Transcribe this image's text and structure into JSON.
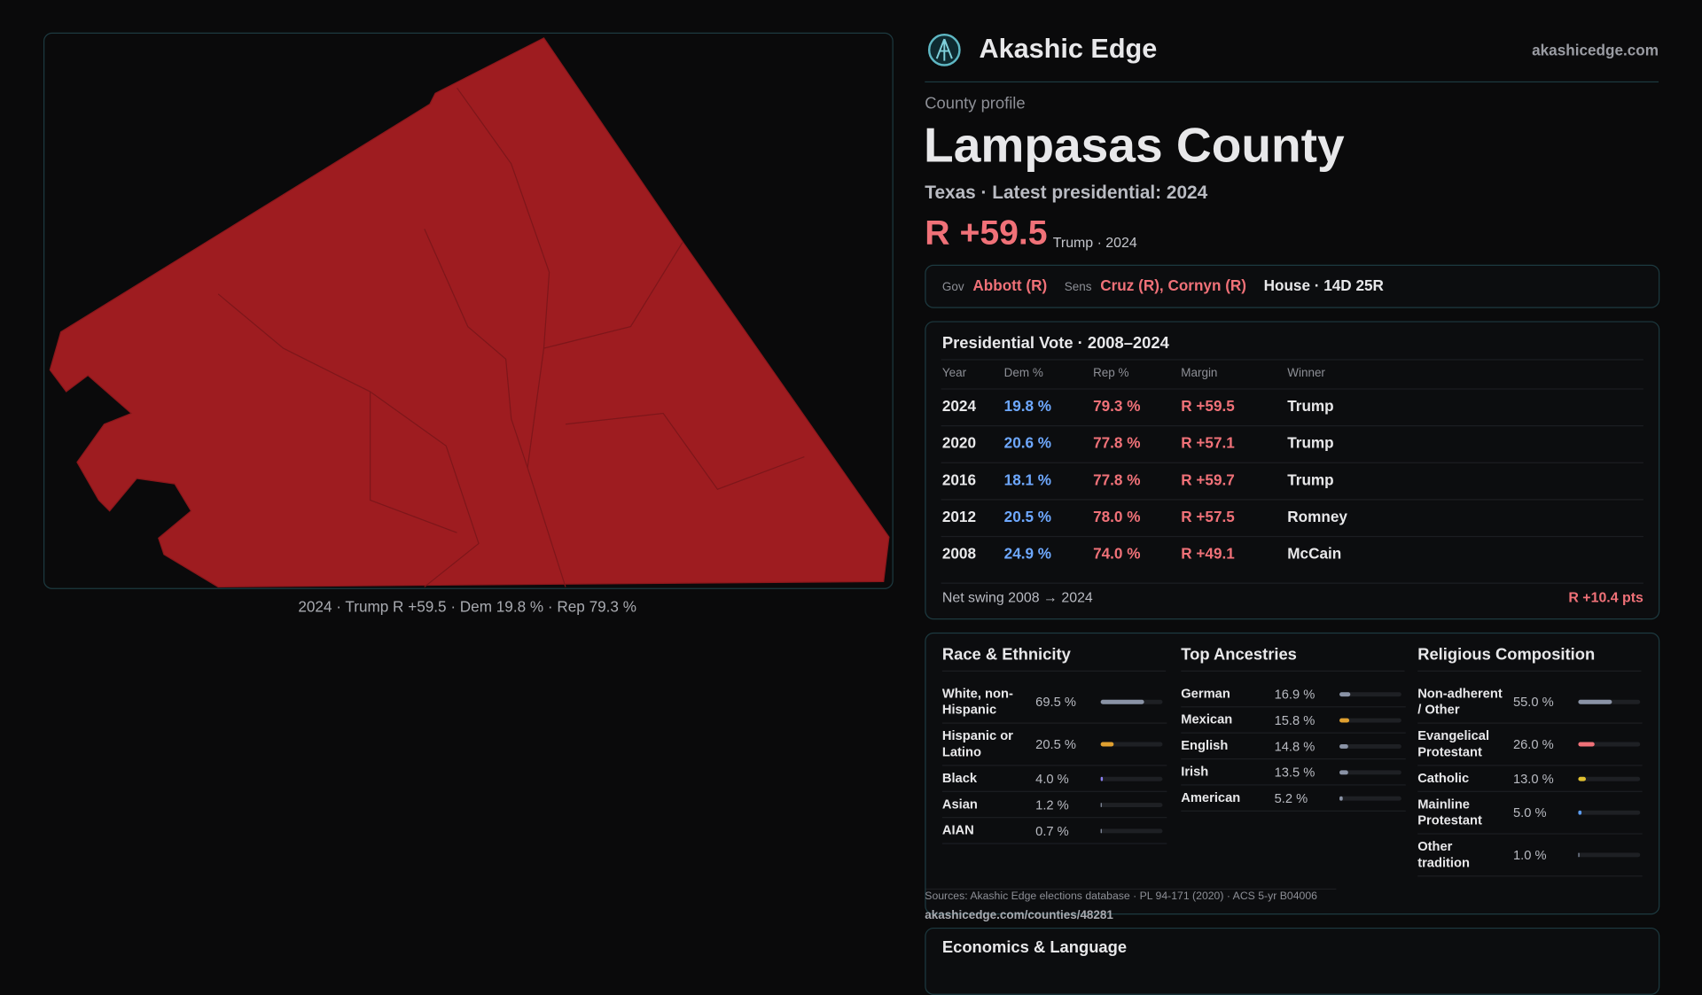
{
  "header": {
    "brand": "Akashic Edge",
    "site": "akashicedge.com"
  },
  "profile": {
    "kicker": "County profile",
    "name": "Lampasas County",
    "subtitle": "Texas · Latest presidential: 2024",
    "margin": "R +59.5",
    "margin_note": "Trump · 2024"
  },
  "officials": {
    "items": [
      {
        "role": "Gov",
        "names": "Abbott (R)"
      },
      {
        "role": "Sens",
        "names": "Cruz (R), Cornyn (R)"
      }
    ],
    "house": "House · 14D 25R"
  },
  "map": {
    "caption": "2024 · Trump R +59.5 · Dem 19.8 % · Rep 79.3 %"
  },
  "presidential": {
    "title": "Presidential Vote · 2008–2024",
    "columns": [
      "Year",
      "Dem %",
      "Rep %",
      "Margin",
      "Winner"
    ],
    "rows": [
      [
        "2024",
        "19.8 %",
        "79.3 %",
        "R +59.5",
        "Trump"
      ],
      [
        "2020",
        "20.6 %",
        "77.8 %",
        "R +57.1",
        "Trump"
      ],
      [
        "2016",
        "18.1 %",
        "77.8 %",
        "R +59.7",
        "Trump"
      ],
      [
        "2012",
        "20.5 %",
        "78.0 %",
        "R +57.5",
        "Romney"
      ],
      [
        "2008",
        "24.9 %",
        "74.0 %",
        "R +49.1",
        "McCain"
      ]
    ],
    "swing_label": "Net swing 2008 → 2024",
    "swing_value": "R +10.4 pts"
  },
  "demographics": {
    "groups": [
      {
        "title": "Race & Ethnicity",
        "items": [
          {
            "name": "White, non-Hispanic",
            "value": 69.5,
            "label": "69.5 %",
            "color": "#8a93a6"
          },
          {
            "name": "Hispanic or Latino",
            "value": 20.5,
            "label": "20.5 %",
            "color": "#e0a030"
          },
          {
            "name": "Black",
            "value": 4.0,
            "label": "4.0 %",
            "color": "#8a7ff0"
          },
          {
            "name": "Asian",
            "value": 1.2,
            "label": "1.2 %",
            "color": "#8a93a6"
          },
          {
            "name": "AIAN",
            "value": 0.7,
            "label": "0.7 %",
            "color": "#8a93a6"
          }
        ]
      },
      {
        "title": "Top Ancestries",
        "items": [
          {
            "name": "German",
            "value": 16.9,
            "label": "16.9 %",
            "color": "#8a93a6"
          },
          {
            "name": "Mexican",
            "value": 15.8,
            "label": "15.8 %",
            "color": "#e0a030"
          },
          {
            "name": "English",
            "value": 14.8,
            "label": "14.8 %",
            "color": "#8a93a6"
          },
          {
            "name": "Irish",
            "value": 13.5,
            "label": "13.5 %",
            "color": "#8a93a6"
          },
          {
            "name": "American",
            "value": 5.2,
            "label": "5.2 %",
            "color": "#8a93a6"
          }
        ]
      },
      {
        "title": "Religious Composition",
        "items": [
          {
            "name": "Non-adherent / Other",
            "value": 55.0,
            "label": "55.0 %",
            "color": "#8a93a6"
          },
          {
            "name": "Evangelical Protestant",
            "value": 26.0,
            "label": "26.0 %",
            "color": "#f07178"
          },
          {
            "name": "Catholic",
            "value": 13.0,
            "label": "13.0 %",
            "color": "#e0c030"
          },
          {
            "name": "Mainline Protestant",
            "value": 5.0,
            "label": "5.0 %",
            "color": "#5b9cf0"
          },
          {
            "name": "Other tradition",
            "value": 1.0,
            "label": "1.0 %",
            "color": "#8a93a6"
          }
        ]
      }
    ],
    "sources": "Sources: Akashic Edge elections database · PL 94-171 (2020) · ACS 5-yr B04006",
    "url": "akashicedge.com/counties/48281"
  },
  "economics": {
    "title": "Economics & Language"
  }
}
